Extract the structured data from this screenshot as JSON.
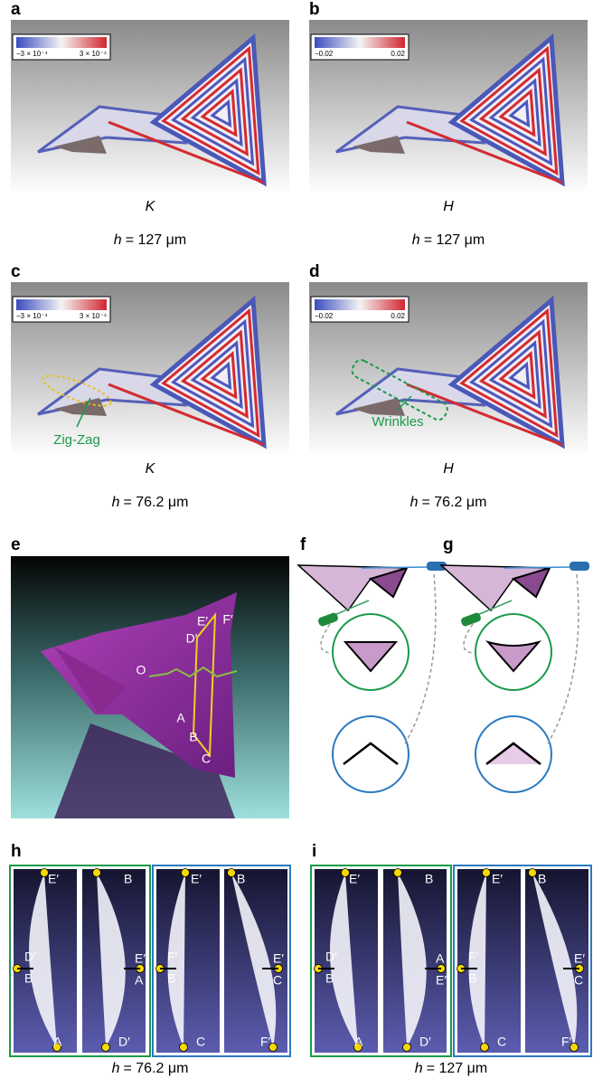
{
  "panels": {
    "a": {
      "label": "a",
      "colorbar": [
        "−3 × 10⁻⁴",
        "3 × 10⁻⁴"
      ],
      "quantity": "K",
      "caption": [
        "h",
        "= 127 μm"
      ]
    },
    "b": {
      "label": "b",
      "colorbar": [
        "−0.02",
        "0.02"
      ],
      "quantity": "H",
      "caption": [
        "h",
        "= 127 μm"
      ]
    },
    "c": {
      "label": "c",
      "colorbar": [
        "−3 × 10⁻⁴",
        "3 × 10⁻⁴"
      ],
      "quantity": "K",
      "annotation": "Zig-Zag",
      "caption": [
        "h",
        "= 76.2 μm"
      ]
    },
    "d": {
      "label": "d",
      "colorbar": [
        "−0.02",
        "0.02"
      ],
      "quantity": "H",
      "annotation": "Wrinkles",
      "caption": [
        "h",
        "= 76.2 μm"
      ]
    },
    "e": {
      "label": "e",
      "points": [
        "E′",
        "F′",
        "D′",
        "O",
        "A",
        "B",
        "C"
      ]
    },
    "f": {
      "label": "f"
    },
    "g": {
      "label": "g"
    },
    "h": {
      "label": "h",
      "strips": [
        [
          "E′",
          "D′",
          "B",
          "A"
        ],
        [
          "B",
          "E′",
          "A",
          "D′"
        ],
        [
          "E′",
          "F′",
          "B",
          "C"
        ],
        [
          "B",
          "E′",
          "C",
          "F′"
        ]
      ],
      "caption": [
        "h",
        "= 76.2 μm"
      ]
    },
    "i": {
      "label": "i",
      "strips": [
        [
          "E′",
          "D′",
          "B",
          "A"
        ],
        [
          "B",
          "A",
          "E′",
          "D′"
        ],
        [
          "E′",
          "F′",
          "B",
          "C"
        ],
        [
          "B",
          "E′",
          "C",
          "F′"
        ]
      ],
      "caption": [
        "h",
        "= 127 μm"
      ]
    }
  }
}
